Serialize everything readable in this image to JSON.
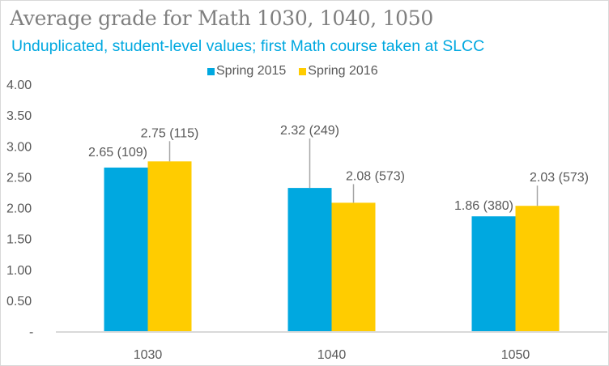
{
  "chart_data": {
    "type": "bar",
    "title": "Average grade for Math 1030, 1040, 1050",
    "subtitle": "Unduplicated, student-level values; first Math course taken at SLCC",
    "categories": [
      "1030",
      "1040",
      "1050"
    ],
    "series": [
      {
        "name": "Spring 2015",
        "color": "#00a8e0",
        "values": [
          2.65,
          2.32,
          1.86
        ],
        "labels": [
          "2.65 (109)",
          "2.32 (249)",
          "1.86 (380)"
        ]
      },
      {
        "name": "Spring 2016",
        "color": "#ffcc00",
        "values": [
          2.75,
          2.08,
          2.03
        ],
        "labels": [
          "2.75 (115)",
          "2.08 (573)",
          "2.03 (573)"
        ]
      }
    ],
    "yticks": [
      "-",
      "0.50",
      "1.00",
      "1.50",
      "2.00",
      "2.50",
      "3.00",
      "3.50",
      "4.00"
    ],
    "ylim": [
      0,
      4
    ],
    "xlabel": "",
    "ylabel": "",
    "grid": false,
    "legend": "top-center"
  }
}
